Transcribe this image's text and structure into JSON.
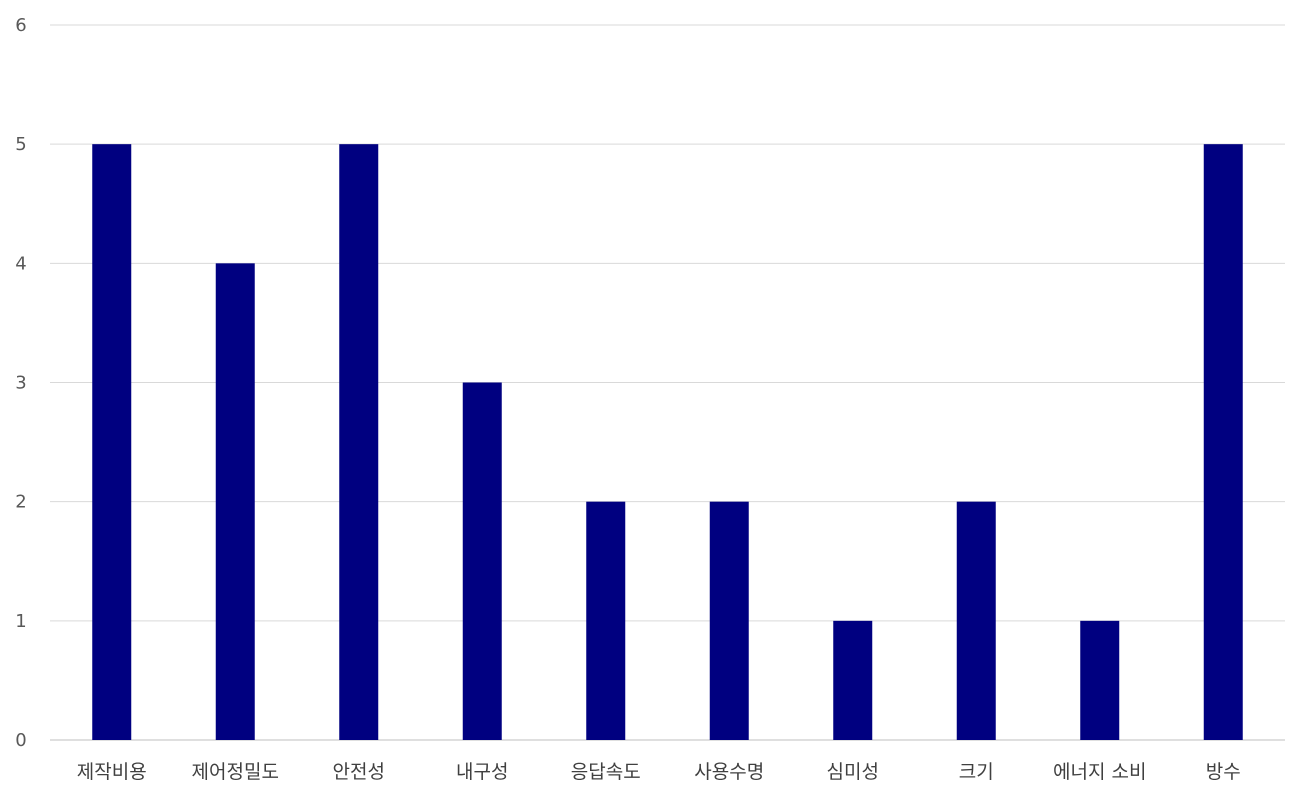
{
  "chart_data": {
    "type": "bar",
    "title": "",
    "xlabel": "",
    "ylabel": "",
    "categories": [
      "제작비용",
      "제어정밀도",
      "안전성",
      "내구성",
      "응답속도",
      "사용수명",
      "심미성",
      "크기",
      "에너지 소비",
      "방수"
    ],
    "values": [
      5,
      4,
      5,
      3,
      2,
      2,
      1,
      2,
      1,
      5
    ],
    "ylim": [
      0,
      6
    ],
    "yticks": [
      0,
      1,
      2,
      3,
      4,
      5,
      6
    ],
    "grid": true,
    "legend": "none",
    "bar_color": "#000080"
  }
}
